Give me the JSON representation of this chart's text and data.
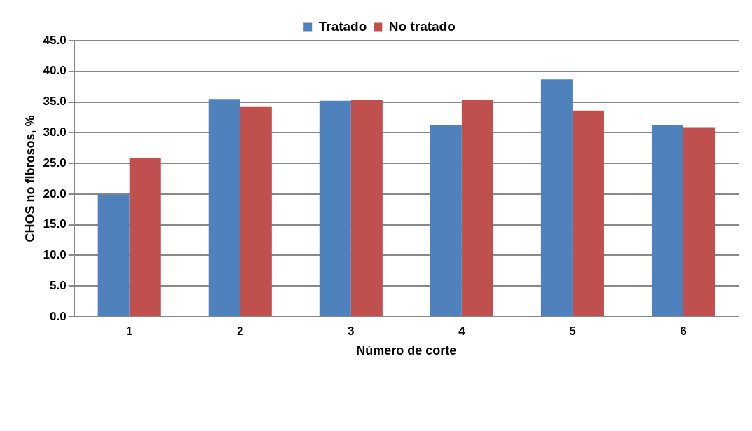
{
  "chart_data": {
    "type": "bar",
    "xlabel": "Número de corte",
    "ylabel": "CHOS no fibrosos, %",
    "categories": [
      "1",
      "2",
      "3",
      "4",
      "5",
      "6"
    ],
    "series": [
      {
        "name": "Tratado",
        "color": "#4f81bd",
        "values": [
          19.9,
          35.5,
          35.2,
          31.3,
          38.7,
          31.3
        ]
      },
      {
        "name": "No tratado",
        "color": "#c0504d",
        "values": [
          25.8,
          34.3,
          35.4,
          35.3,
          33.6,
          30.9
        ]
      }
    ],
    "ylim": [
      0,
      45
    ],
    "yticks": [
      {
        "value": 0,
        "label": "0.0"
      },
      {
        "value": 5,
        "label": "5.0"
      },
      {
        "value": 10,
        "label": "10.0"
      },
      {
        "value": 15,
        "label": "15.0"
      },
      {
        "value": 20,
        "label": "20.0"
      },
      {
        "value": 25,
        "label": "25.0"
      },
      {
        "value": 30,
        "label": "30.0"
      },
      {
        "value": 35,
        "label": "35.0"
      },
      {
        "value": 40,
        "label": "40.0"
      },
      {
        "value": 45,
        "label": "45.0"
      }
    ],
    "grid": "y",
    "legend": "top"
  }
}
